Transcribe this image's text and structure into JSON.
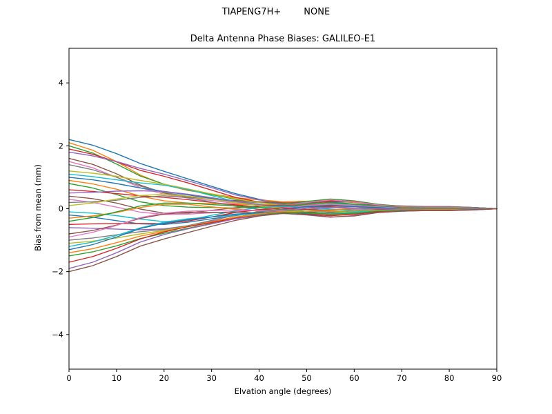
{
  "chart_data": {
    "type": "line",
    "suptitle": "TIAPENG7H+        NONE",
    "title": "Delta Antenna Phase Biases: GALILEO-E1",
    "xlabel": "Elvation angle (degrees)",
    "ylabel": "Bias from mean (mm)",
    "xlim": [
      0,
      90
    ],
    "ylim": [
      -5.1,
      5.1
    ],
    "xticks": [
      0,
      10,
      20,
      30,
      40,
      50,
      60,
      70,
      80,
      90
    ],
    "yticks": [
      -4,
      -2,
      0,
      2,
      4
    ],
    "ytick_labels": [
      "−4",
      "−2",
      "0",
      "2",
      "4"
    ],
    "grid": false,
    "legend": false,
    "x": [
      0,
      5,
      10,
      15,
      20,
      25,
      30,
      35,
      40,
      45,
      50,
      55,
      60,
      65,
      70,
      75,
      80,
      85,
      90
    ],
    "colors": [
      "#1f77b4",
      "#ff7f0e",
      "#2ca02c",
      "#d62728",
      "#9467bd",
      "#8c564b",
      "#e377c2",
      "#7f7f7f",
      "#bcbd22",
      "#17becf"
    ],
    "series": [
      [
        2.2,
        2.02,
        1.75,
        1.44,
        1.19,
        0.95,
        0.71,
        0.48,
        0.3,
        0.18,
        0.18,
        0.23,
        0.2,
        0.11,
        0.09,
        0.07,
        0.07,
        0.04,
        0
      ],
      [
        2.1,
        1.86,
        1.5,
        1.07,
        0.77,
        0.58,
        0.47,
        0.35,
        0.28,
        0.22,
        0.24,
        0.27,
        0.2,
        0.13,
        0.08,
        0.06,
        0.06,
        0.04,
        0
      ],
      [
        2.0,
        1.77,
        1.42,
        1.04,
        0.78,
        0.6,
        0.45,
        0.3,
        0.21,
        0.16,
        0.23,
        0.31,
        0.25,
        0.14,
        0.08,
        0.06,
        0.06,
        0.04,
        0
      ],
      [
        1.9,
        1.73,
        1.49,
        1.22,
        1.03,
        0.82,
        0.59,
        0.36,
        0.21,
        0.11,
        0.17,
        0.25,
        0.23,
        0.11,
        0.08,
        0.06,
        0.06,
        0.04,
        0
      ],
      [
        1.8,
        1.68,
        1.5,
        1.28,
        1.1,
        0.89,
        0.67,
        0.44,
        0.28,
        0.14,
        0.12,
        0.14,
        0.14,
        0.08,
        0.07,
        0.05,
        0.05,
        0.04,
        0
      ],
      [
        1.6,
        1.41,
        1.11,
        0.75,
        0.5,
        0.37,
        0.31,
        0.26,
        0.22,
        0.19,
        0.19,
        0.21,
        0.15,
        0.1,
        0.06,
        0.05,
        0.05,
        0.03,
        0
      ],
      [
        1.5,
        1.3,
        1.0,
        0.67,
        0.46,
        0.34,
        0.26,
        0.17,
        0.13,
        0.12,
        0.2,
        0.28,
        0.22,
        0.12,
        0.06,
        0.05,
        0.05,
        0.03,
        0
      ],
      [
        1.4,
        1.24,
        1.0,
        0.72,
        0.52,
        0.39,
        0.32,
        0.23,
        0.19,
        0.14,
        0.16,
        0.18,
        0.13,
        0.08,
        0.06,
        0.04,
        0.04,
        0.03,
        0
      ],
      [
        1.2,
        1.13,
        1.03,
        0.9,
        0.78,
        0.63,
        0.47,
        0.32,
        0.19,
        0.1,
        0.07,
        0.08,
        0.08,
        0.04,
        0.05,
        0.04,
        0.04,
        0.02,
        0
      ],
      [
        1.1,
        1.02,
        0.92,
        0.82,
        0.75,
        0.61,
        0.42,
        0.23,
        0.1,
        0.03,
        0.08,
        0.14,
        0.15,
        0.07,
        0.04,
        0.03,
        0.03,
        0.02,
        0
      ],
      [
        1.0,
        0.92,
        0.8,
        0.66,
        0.55,
        0.44,
        0.33,
        0.22,
        0.14,
        0.08,
        0.08,
        0.1,
        0.09,
        0.05,
        0.04,
        0.03,
        0.03,
        0.02,
        0
      ],
      [
        0.9,
        0.79,
        0.62,
        0.4,
        0.25,
        0.18,
        0.16,
        0.14,
        0.13,
        0.11,
        0.11,
        0.12,
        0.08,
        0.05,
        0.04,
        0.03,
        0.03,
        0.02,
        0
      ],
      [
        0.8,
        0.66,
        0.45,
        0.22,
        0.1,
        0.05,
        0.04,
        0.02,
        0.04,
        0.06,
        0.14,
        0.19,
        0.15,
        0.08,
        0.03,
        0.02,
        0.02,
        0.02,
        0
      ],
      [
        0.6,
        0.55,
        0.48,
        0.41,
        0.36,
        0.29,
        0.2,
        0.12,
        0.06,
        0.03,
        0.05,
        0.08,
        0.08,
        0.04,
        0.02,
        0.02,
        0.02,
        0.01,
        0
      ],
      [
        0.5,
        0.52,
        0.56,
        0.57,
        0.55,
        0.46,
        0.35,
        0.23,
        0.13,
        0.04,
        -0.02,
        -0.04,
        -0.01,
        -0.01,
        0.02,
        0.02,
        0.02,
        0.01,
        0
      ],
      [
        0.4,
        0.32,
        0.18,
        -0.01,
        -0.14,
        -0.14,
        -0.05,
        0.03,
        0.09,
        0.11,
        0.08,
        0.05,
        0,
        0.02,
        0.02,
        0.01,
        0.01,
        0.01,
        0
      ],
      [
        0.3,
        0.2,
        0.05,
        -0.11,
        -0.18,
        -0.17,
        -0.13,
        -0.09,
        -0.03,
        0.02,
        0.1,
        0.15,
        0.1,
        0.06,
        0.01,
        0.01,
        0.01,
        0.01,
        0
      ],
      [
        0.2,
        0.22,
        0.27,
        0.36,
        0.41,
        0.35,
        0.21,
        0.08,
        -0.02,
        -0.06,
        -0.02,
        0.03,
        0.06,
        0.01,
        0.01,
        0.01,
        0.01,
        0,
        0
      ],
      [
        0.1,
        0.18,
        0.31,
        0.42,
        0.46,
        0.4,
        0.3,
        0.2,
        0.1,
        0.01,
        -0.08,
        -0.13,
        -0.08,
        -0.04,
        0,
        0,
        0,
        0,
        0
      ],
      [
        -0.1,
        -0.14,
        -0.22,
        -0.33,
        -0.41,
        -0.36,
        -0.21,
        -0.07,
        0.04,
        0.08,
        0.04,
        -0.01,
        -0.06,
        -0.01,
        0,
        0,
        0,
        0,
        0
      ],
      [
        -0.2,
        -0.27,
        -0.38,
        -0.48,
        -0.5,
        -0.43,
        -0.32,
        -0.22,
        -0.11,
        -0.02,
        0.07,
        0.11,
        0.07,
        0.04,
        -0.01,
        -0.01,
        -0.01,
        0,
        0
      ],
      [
        -0.3,
        -0.23,
        -0.12,
        0.04,
        0.14,
        0.14,
        0.06,
        -0.01,
        -0.08,
        -0.09,
        -0.07,
        -0.04,
        0.01,
        -0.02,
        -0.01,
        -0.01,
        -0.01,
        -0.01,
        0
      ],
      [
        -0.4,
        -0.28,
        -0.1,
        0.09,
        0.18,
        0.18,
        0.13,
        0.09,
        0.03,
        -0.03,
        -0.12,
        -0.17,
        -0.12,
        -0.06,
        -0.02,
        -0.01,
        -0.01,
        -0.01,
        0
      ],
      [
        -0.5,
        -0.48,
        -0.47,
        -0.47,
        -0.47,
        -0.39,
        -0.26,
        -0.12,
        -0.03,
        0.02,
        -0.02,
        -0.07,
        -0.09,
        -0.03,
        -0.02,
        -0.02,
        -0.02,
        -0.01,
        0
      ],
      [
        -0.6,
        -0.62,
        -0.65,
        -0.67,
        -0.64,
        -0.54,
        -0.4,
        -0.27,
        -0.15,
        -0.05,
        0.02,
        0.04,
        0.01,
        0,
        -0.02,
        -0.02,
        -0.02,
        -0.01,
        0
      ],
      [
        -0.8,
        -0.69,
        -0.52,
        -0.31,
        -0.17,
        -0.11,
        -0.12,
        -0.11,
        -0.13,
        -0.11,
        -0.11,
        -0.1,
        -0.06,
        -0.05,
        -0.03,
        -0.02,
        -0.02,
        -0.02,
        0
      ],
      [
        -0.9,
        -0.75,
        -0.53,
        -0.28,
        -0.14,
        -0.08,
        -0.06,
        -0.04,
        -0.05,
        -0.07,
        -0.15,
        -0.21,
        -0.16,
        -0.08,
        -0.04,
        -0.03,
        -0.03,
        -0.02,
        0
      ],
      [
        -1.0,
        -0.93,
        -0.83,
        -0.73,
        -0.66,
        -0.54,
        -0.37,
        -0.21,
        -0.09,
        -0.03,
        -0.07,
        -0.13,
        -0.14,
        -0.06,
        -0.04,
        -0.03,
        -0.03,
        -0.02,
        0
      ],
      [
        -1.1,
        -1.03,
        -0.93,
        -0.8,
        -0.69,
        -0.56,
        -0.42,
        -0.28,
        -0.17,
        -0.09,
        -0.07,
        -0.08,
        -0.08,
        -0.05,
        -0.04,
        -0.03,
        -0.03,
        -0.02,
        0
      ],
      [
        -1.2,
        -1.06,
        -0.85,
        -0.61,
        -0.43,
        -0.32,
        -0.26,
        -0.2,
        -0.16,
        -0.13,
        -0.14,
        -0.16,
        -0.11,
        -0.07,
        -0.05,
        -0.04,
        -0.04,
        -0.02,
        0
      ],
      [
        -1.3,
        -1.14,
        -0.9,
        -0.63,
        -0.46,
        -0.35,
        -0.26,
        -0.17,
        -0.13,
        -0.1,
        -0.16,
        -0.22,
        -0.17,
        -0.1,
        -0.05,
        -0.04,
        -0.04,
        -0.03,
        0
      ],
      [
        -1.4,
        -1.27,
        -1.08,
        -0.87,
        -0.72,
        -0.57,
        -0.42,
        -0.26,
        -0.16,
        -0.09,
        -0.13,
        -0.18,
        -0.16,
        -0.08,
        -0.06,
        -0.04,
        -0.04,
        -0.03,
        0
      ],
      [
        -1.5,
        -1.37,
        -1.18,
        -0.95,
        -0.78,
        -0.62,
        -0.47,
        -0.31,
        -0.2,
        -0.12,
        -0.13,
        -0.17,
        -0.15,
        -0.08,
        -0.06,
        -0.05,
        -0.05,
        -0.03,
        0
      ],
      [
        -1.7,
        -1.52,
        -1.26,
        -0.96,
        -0.74,
        -0.57,
        -0.44,
        -0.3,
        -0.21,
        -0.15,
        -0.18,
        -0.22,
        -0.18,
        -0.1,
        -0.07,
        -0.05,
        -0.05,
        -0.03,
        0
      ],
      [
        -1.9,
        -1.7,
        -1.4,
        -1.06,
        -0.82,
        -0.64,
        -0.48,
        -0.32,
        -0.22,
        -0.15,
        -0.2,
        -0.27,
        -0.22,
        -0.12,
        -0.08,
        -0.06,
        -0.06,
        -0.04,
        0
      ],
      [
        -2.0,
        -1.81,
        -1.52,
        -1.19,
        -0.96,
        -0.76,
        -0.56,
        -0.37,
        -0.23,
        -0.15,
        -0.19,
        -0.26,
        -0.23,
        -0.12,
        -0.08,
        -0.06,
        -0.06,
        -0.04,
        0
      ]
    ]
  }
}
